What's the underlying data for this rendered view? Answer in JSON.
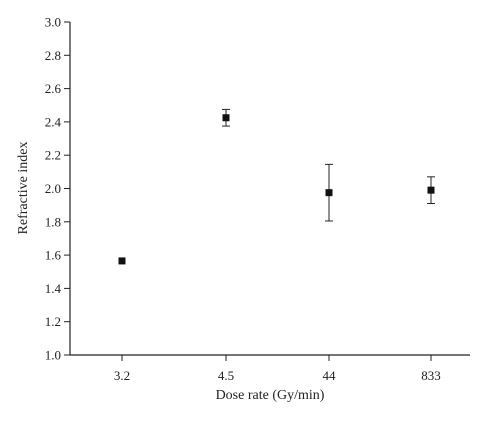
{
  "chart_data": {
    "type": "scatter",
    "xlabel": "Dose rate (Gy/min)",
    "ylabel": "Refractive index",
    "categories": [
      "3.2",
      "4.5",
      "44",
      "833"
    ],
    "ylim": [
      1.0,
      3.0
    ],
    "yticks": [
      1.0,
      1.2,
      1.4,
      1.6,
      1.8,
      2.0,
      2.2,
      2.4,
      2.6,
      2.8,
      3.0
    ],
    "ytick_labels": [
      "1.0",
      "1.2",
      "1.4",
      "1.6",
      "1.8",
      "2.0",
      "2.2",
      "2.4",
      "2.6",
      "2.8",
      "3.0"
    ],
    "grid": false,
    "series": [
      {
        "values": [
          1.565,
          2.425,
          1.975,
          1.99
        ],
        "errors": [
          0,
          0.05,
          0.17,
          0.08
        ]
      }
    ]
  }
}
